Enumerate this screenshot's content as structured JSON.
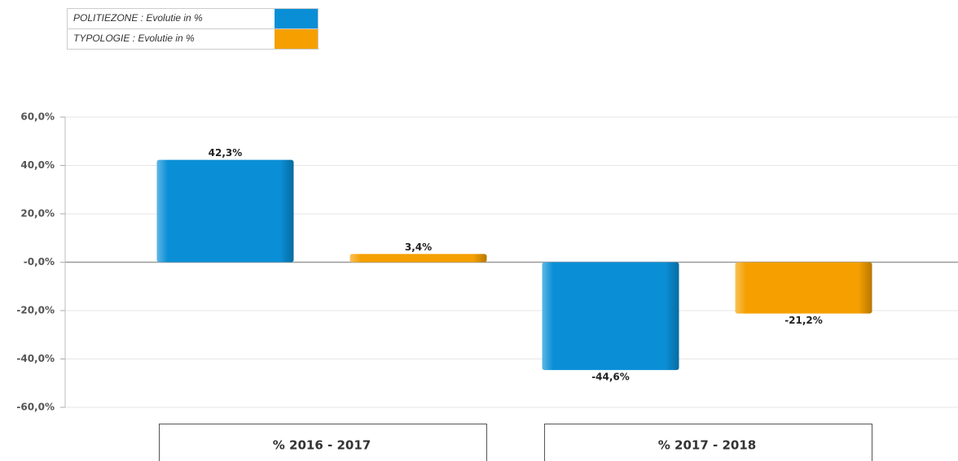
{
  "chart_data": {
    "type": "bar",
    "categories": [
      "% 2016 - 2017",
      "% 2017 - 2018"
    ],
    "series": [
      {
        "name": "POLITIEZONE : Evolutie in %",
        "color": "#0a8fd6",
        "values": [
          42.3,
          -44.6
        ],
        "value_labels": [
          "42,3%",
          "-44,6%"
        ]
      },
      {
        "name": "TYPOLOGIE : Evolutie in %",
        "color": "#f5a000",
        "values": [
          3.4,
          -21.2
        ],
        "value_labels": [
          "3,4%",
          "-21,2%"
        ]
      }
    ],
    "ylim": [
      -60,
      60
    ],
    "yticks": [
      {
        "value": -60,
        "label": "-60,0%"
      },
      {
        "value": -40,
        "label": "-40,0%"
      },
      {
        "value": -20,
        "label": "-20,0%"
      },
      {
        "value": 0,
        "label": "-0,0%"
      },
      {
        "value": 20,
        "label": "20,0%"
      },
      {
        "value": 40,
        "label": "40,0%"
      },
      {
        "value": 60,
        "label": "60,0%"
      }
    ],
    "grid": true
  }
}
